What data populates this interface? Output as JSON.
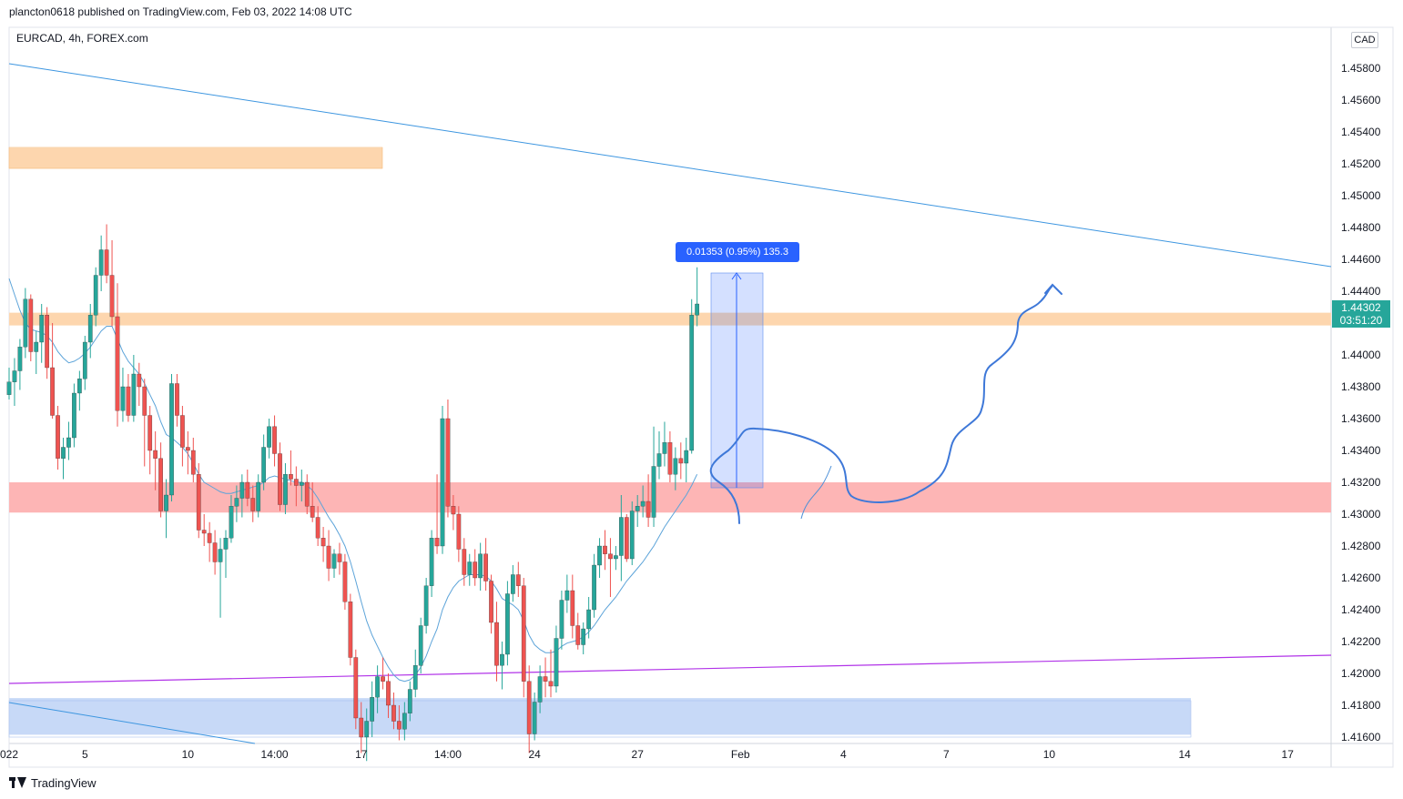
{
  "header": {
    "published_by": "plancton0618 published on TradingView.com, Feb 03, 2022 14:08 UTC",
    "symbol_line": "EURCAD, 4h, FOREX.com"
  },
  "axis": {
    "currency": "CAD",
    "current_price": "1.44302",
    "countdown": "03:51:20"
  },
  "measure": {
    "label": "0.01353 (0.95%) 135.3"
  },
  "footer": {
    "brand": "TradingView"
  },
  "colors": {
    "up": "#26a69a",
    "down": "#ef5350",
    "ma": "#5da4d9",
    "trend": "#3d96e0",
    "purple": "#b133e8",
    "orange_zone": "#fdd6ae",
    "red_zone": "#fdb5b5",
    "blue_zone": "#c7d9f7"
  },
  "chart_data": {
    "type": "candlestick",
    "symbol": "EURCAD",
    "timeframe": "4h",
    "ylim": [
      1.416,
      1.46
    ],
    "y_ticks": [
      "1.41600",
      "1.41800",
      "1.42000",
      "1.42200",
      "1.42400",
      "1.42600",
      "1.42800",
      "1.43000",
      "1.43200",
      "1.43400",
      "1.43600",
      "1.43800",
      "1.44000",
      "1.44200",
      "1.44400",
      "1.44600",
      "1.44800",
      "1.45000",
      "1.45200",
      "1.45400",
      "1.45600",
      "1.45800"
    ],
    "x_ticks": [
      {
        "label": "022",
        "i": 0
      },
      {
        "label": "5",
        "i": 14
      },
      {
        "label": "10",
        "i": 33
      },
      {
        "label": "14:00",
        "i": 49
      },
      {
        "label": "17",
        "i": 65
      },
      {
        "label": "14:00",
        "i": 81
      },
      {
        "label": "24",
        "i": 97
      },
      {
        "label": "27",
        "i": 116
      },
      {
        "label": "Feb",
        "i": 135
      },
      {
        "label": "4",
        "i": 154
      },
      {
        "label": "7",
        "i": 173
      },
      {
        "label": "10",
        "i": 192
      },
      {
        "label": "14",
        "i": 217
      },
      {
        "label": "17",
        "i": 236
      }
    ],
    "candles": [
      [
        1.4375,
        1.4392,
        1.4372,
        1.4383
      ],
      [
        1.4383,
        1.4398,
        1.4368,
        1.439
      ],
      [
        1.439,
        1.441,
        1.4378,
        1.4405
      ],
      [
        1.4405,
        1.4442,
        1.4398,
        1.4435
      ],
      [
        1.4435,
        1.4438,
        1.4396,
        1.4402
      ],
      [
        1.4402,
        1.4415,
        1.4388,
        1.4408
      ],
      [
        1.4408,
        1.4432,
        1.4395,
        1.4425
      ],
      [
        1.4425,
        1.443,
        1.4385,
        1.4392
      ],
      [
        1.4392,
        1.442,
        1.436,
        1.4362
      ],
      [
        1.4362,
        1.4368,
        1.4328,
        1.4335
      ],
      [
        1.4335,
        1.4348,
        1.4322,
        1.4342
      ],
      [
        1.4342,
        1.4358,
        1.4334,
        1.4348
      ],
      [
        1.4348,
        1.4382,
        1.4342,
        1.4376
      ],
      [
        1.4376,
        1.439,
        1.4365,
        1.4385
      ],
      [
        1.4385,
        1.4412,
        1.4378,
        1.4408
      ],
      [
        1.4408,
        1.4432,
        1.4398,
        1.4425
      ],
      [
        1.4425,
        1.4455,
        1.4418,
        1.445
      ],
      [
        1.445,
        1.4475,
        1.444,
        1.4466
      ],
      [
        1.4466,
        1.4482,
        1.4445,
        1.445
      ],
      [
        1.445,
        1.4472,
        1.4418,
        1.4424
      ],
      [
        1.4424,
        1.4445,
        1.4355,
        1.4365
      ],
      [
        1.4365,
        1.4392,
        1.4358,
        1.438
      ],
      [
        1.438,
        1.4388,
        1.4358,
        1.4362
      ],
      [
        1.4362,
        1.44,
        1.4358,
        1.4388
      ],
      [
        1.4388,
        1.4395,
        1.4368,
        1.438
      ],
      [
        1.438,
        1.4385,
        1.433,
        1.4362
      ],
      [
        1.4362,
        1.4368,
        1.4325,
        1.434
      ],
      [
        1.434,
        1.4352,
        1.4315,
        1.4335
      ],
      [
        1.4335,
        1.4345,
        1.4298,
        1.4302
      ],
      [
        1.4302,
        1.4322,
        1.4285,
        1.4312
      ],
      [
        1.4312,
        1.4388,
        1.4308,
        1.4382
      ],
      [
        1.4382,
        1.4388,
        1.4355,
        1.4362
      ],
      [
        1.4362,
        1.4368,
        1.433,
        1.4342
      ],
      [
        1.4342,
        1.4352,
        1.4325,
        1.434
      ],
      [
        1.434,
        1.4348,
        1.432,
        1.4325
      ],
      [
        1.4325,
        1.4332,
        1.4285,
        1.429
      ],
      [
        1.429,
        1.43,
        1.428,
        1.4288
      ],
      [
        1.4288,
        1.4295,
        1.427,
        1.4282
      ],
      [
        1.4282,
        1.429,
        1.4262,
        1.427
      ],
      [
        1.427,
        1.4285,
        1.4235,
        1.4278
      ],
      [
        1.4278,
        1.429,
        1.426,
        1.4285
      ],
      [
        1.4285,
        1.4312,
        1.4282,
        1.4305
      ],
      [
        1.4305,
        1.4318,
        1.4295,
        1.431
      ],
      [
        1.431,
        1.4325,
        1.4298,
        1.432
      ],
      [
        1.432,
        1.4328,
        1.4305,
        1.431
      ],
      [
        1.431,
        1.4318,
        1.4295,
        1.4302
      ],
      [
        1.4302,
        1.4325,
        1.4298,
        1.432
      ],
      [
        1.432,
        1.435,
        1.4315,
        1.4342
      ],
      [
        1.4342,
        1.436,
        1.4335,
        1.4355
      ],
      [
        1.4355,
        1.4362,
        1.433,
        1.4338
      ],
      [
        1.4338,
        1.4345,
        1.4302,
        1.4306
      ],
      [
        1.4306,
        1.4332,
        1.43,
        1.4325
      ],
      [
        1.4325,
        1.434,
        1.4318,
        1.4322
      ],
      [
        1.4322,
        1.433,
        1.4305,
        1.4318
      ],
      [
        1.4318,
        1.4328,
        1.4308,
        1.432
      ],
      [
        1.432,
        1.4325,
        1.43,
        1.4305
      ],
      [
        1.4305,
        1.432,
        1.4295,
        1.4298
      ],
      [
        1.4298,
        1.4305,
        1.428,
        1.4285
      ],
      [
        1.4285,
        1.4292,
        1.427,
        1.428
      ],
      [
        1.428,
        1.429,
        1.4258,
        1.4266
      ],
      [
        1.4266,
        1.4278,
        1.426,
        1.4275
      ],
      [
        1.4275,
        1.4282,
        1.4262,
        1.427
      ],
      [
        1.427,
        1.4275,
        1.424,
        1.4245
      ],
      [
        1.4245,
        1.425,
        1.4205,
        1.421
      ],
      [
        1.421,
        1.4215,
        1.4165,
        1.4172
      ],
      [
        1.4172,
        1.4182,
        1.415,
        1.416
      ],
      [
        1.416,
        1.4178,
        1.4145,
        1.417
      ],
      [
        1.417,
        1.4195,
        1.416,
        1.4185
      ],
      [
        1.4185,
        1.4205,
        1.4175,
        1.4198
      ],
      [
        1.4198,
        1.421,
        1.419,
        1.4195
      ],
      [
        1.4195,
        1.42,
        1.4172,
        1.418
      ],
      [
        1.418,
        1.4188,
        1.4165,
        1.417
      ],
      [
        1.417,
        1.418,
        1.4158,
        1.4165
      ],
      [
        1.4165,
        1.4182,
        1.4158,
        1.4175
      ],
      [
        1.4175,
        1.4195,
        1.417,
        1.419
      ],
      [
        1.419,
        1.4215,
        1.4185,
        1.4205
      ],
      [
        1.4205,
        1.4235,
        1.42,
        1.423
      ],
      [
        1.423,
        1.426,
        1.4225,
        1.4255
      ],
      [
        1.4255,
        1.429,
        1.4248,
        1.4285
      ],
      [
        1.4285,
        1.4325,
        1.4275,
        1.428
      ],
      [
        1.428,
        1.4368,
        1.4275,
        1.436
      ],
      [
        1.436,
        1.4372,
        1.4298,
        1.4305
      ],
      [
        1.4305,
        1.4312,
        1.429,
        1.43
      ],
      [
        1.43,
        1.4305,
        1.427,
        1.4278
      ],
      [
        1.4278,
        1.4285,
        1.4255,
        1.4262
      ],
      [
        1.4262,
        1.4275,
        1.4255,
        1.427
      ],
      [
        1.427,
        1.4278,
        1.4255,
        1.426
      ],
      [
        1.426,
        1.4282,
        1.4252,
        1.4275
      ],
      [
        1.4275,
        1.4285,
        1.4252,
        1.4258
      ],
      [
        1.4258,
        1.4262,
        1.4225,
        1.4232
      ],
      [
        1.4232,
        1.4245,
        1.4195,
        1.4205
      ],
      [
        1.4205,
        1.422,
        1.419,
        1.4212
      ],
      [
        1.4212,
        1.4258,
        1.4205,
        1.425
      ],
      [
        1.425,
        1.4268,
        1.4245,
        1.4262
      ],
      [
        1.4262,
        1.427,
        1.4248,
        1.4255
      ],
      [
        1.4255,
        1.426,
        1.4185,
        1.4195
      ],
      [
        1.4195,
        1.4205,
        1.415,
        1.4162
      ],
      [
        1.4162,
        1.4188,
        1.4158,
        1.4182
      ],
      [
        1.4182,
        1.4205,
        1.4175,
        1.4198
      ],
      [
        1.4198,
        1.421,
        1.4185,
        1.4195
      ],
      [
        1.4195,
        1.4215,
        1.4185,
        1.4192
      ],
      [
        1.4192,
        1.423,
        1.4188,
        1.4222
      ],
      [
        1.4222,
        1.4252,
        1.4215,
        1.4246
      ],
      [
        1.4246,
        1.4262,
        1.4238,
        1.4252
      ],
      [
        1.4252,
        1.4262,
        1.4222,
        1.423
      ],
      [
        1.423,
        1.4238,
        1.4215,
        1.4218
      ],
      [
        1.4218,
        1.4232,
        1.4212,
        1.4228
      ],
      [
        1.4228,
        1.4248,
        1.4222,
        1.424
      ],
      [
        1.424,
        1.4275,
        1.4235,
        1.4268
      ],
      [
        1.4268,
        1.4285,
        1.426,
        1.428
      ],
      [
        1.428,
        1.429,
        1.4265,
        1.4275
      ],
      [
        1.4275,
        1.4285,
        1.4248,
        1.4272
      ],
      [
        1.4272,
        1.428,
        1.4265,
        1.4274
      ],
      [
        1.4274,
        1.4312,
        1.4258,
        1.4298
      ],
      [
        1.4298,
        1.43,
        1.427,
        1.4272
      ],
      [
        1.4272,
        1.4308,
        1.4268,
        1.4302
      ],
      [
        1.4302,
        1.4312,
        1.4292,
        1.4305
      ],
      [
        1.4305,
        1.4318,
        1.4298,
        1.4308
      ],
      [
        1.4308,
        1.4325,
        1.4292,
        1.4298
      ],
      [
        1.4298,
        1.4355,
        1.4292,
        1.433
      ],
      [
        1.433,
        1.4352,
        1.4322,
        1.4338
      ],
      [
        1.4338,
        1.4358,
        1.433,
        1.4345
      ],
      [
        1.4345,
        1.4352,
        1.432,
        1.4325
      ],
      [
        1.4325,
        1.4342,
        1.4315,
        1.4335
      ],
      [
        1.4335,
        1.4345,
        1.4322,
        1.4332
      ],
      [
        1.4332,
        1.4348,
        1.432,
        1.434
      ],
      [
        1.434,
        1.4435,
        1.4338,
        1.4425
      ],
      [
        1.4425,
        1.4455,
        1.4418,
        1.4432
      ]
    ],
    "ma": [
      1.4448,
      1.4438,
      1.4428,
      1.442,
      1.4416,
      1.4415,
      1.4414,
      1.4412,
      1.4408,
      1.4402,
      1.4398,
      1.4395,
      1.4396,
      1.4398,
      1.4401,
      1.4405,
      1.441,
      1.4415,
      1.4418,
      1.4418,
      1.441,
      1.4402,
      1.4396,
      1.4392,
      1.4388,
      1.4382,
      1.4375,
      1.4368,
      1.4358,
      1.435,
      1.4348,
      1.4345,
      1.4342,
      1.4338,
      1.4332,
      1.4325,
      1.432,
      1.4318,
      1.4316,
      1.4314,
      1.4313,
      1.4313,
      1.4314,
      1.4315,
      1.4316,
      1.4317,
      1.4318,
      1.432,
      1.4323,
      1.4324,
      1.4323,
      1.4322,
      1.4321,
      1.432,
      1.432,
      1.4318,
      1.4315,
      1.431,
      1.4304,
      1.4298,
      1.4293,
      1.4287,
      1.428,
      1.427,
      1.4258,
      1.4245,
      1.4233,
      1.4224,
      1.4217,
      1.421,
      1.4204,
      1.4199,
      1.4196,
      1.4195,
      1.4196,
      1.4199,
      1.4204,
      1.4211,
      1.422,
      1.4228,
      1.424,
      1.4248,
      1.4254,
      1.4258,
      1.426,
      1.4262,
      1.4262,
      1.4262,
      1.4261,
      1.4258,
      1.4253,
      1.4247,
      1.4245,
      1.4243,
      1.424,
      1.4233,
      1.4224,
      1.4218,
      1.4215,
      1.4213,
      1.4213,
      1.4214,
      1.4217,
      1.4219,
      1.422,
      1.4221,
      1.4223,
      1.4226,
      1.423,
      1.4235,
      1.424,
      1.4244,
      1.4248,
      1.4253,
      1.4258,
      1.4262,
      1.4266,
      1.427,
      1.4275,
      1.428,
      1.4286,
      1.4292,
      1.4297,
      1.4302,
      1.4307,
      1.4312,
      1.4318,
      1.4325
    ]
  }
}
